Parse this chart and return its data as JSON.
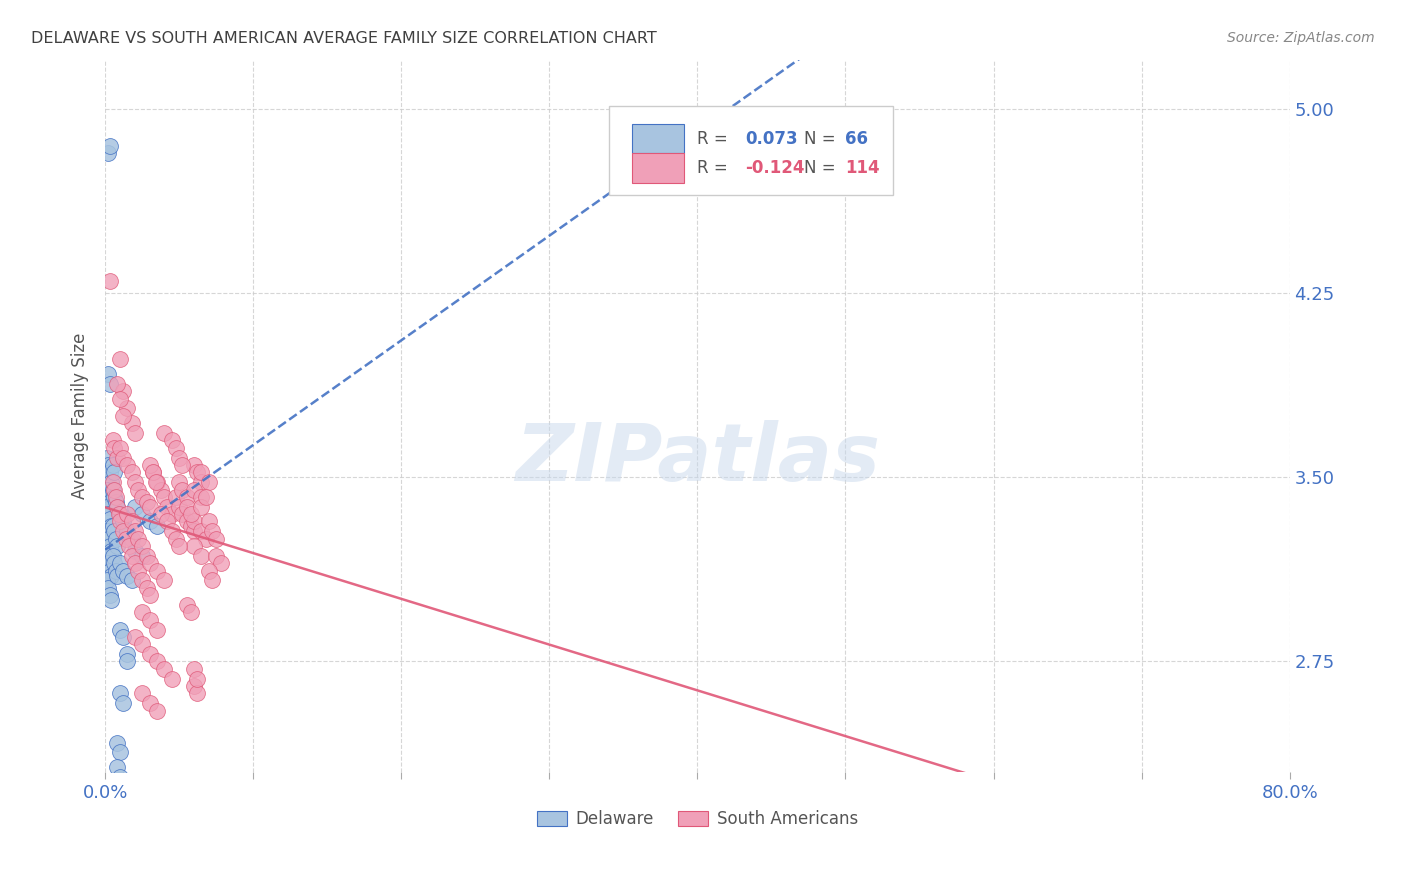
{
  "title": "DELAWARE VS SOUTH AMERICAN AVERAGE FAMILY SIZE CORRELATION CHART",
  "source": "Source: ZipAtlas.com",
  "ylabel": "Average Family Size",
  "yticks": [
    2.75,
    3.5,
    4.25,
    5.0
  ],
  "xlim": [
    0.0,
    0.8
  ],
  "ylim": [
    2.3,
    5.2
  ],
  "watermark": "ZIPatlas",
  "delaware_color": "#a8c4e0",
  "south_american_color": "#f0a0b8",
  "trendline_delaware_color": "#4472c4",
  "trendline_south_color": "#e05878",
  "background_color": "#ffffff",
  "grid_color": "#cccccc",
  "axis_color": "#4472c4",
  "title_color": "#404040",
  "delaware_R": 0.073,
  "delaware_N": 66,
  "south_R": -0.124,
  "south_N": 114,
  "delaware_points": [
    [
      0.002,
      4.82
    ],
    [
      0.003,
      4.85
    ],
    [
      0.002,
      3.92
    ],
    [
      0.003,
      3.88
    ],
    [
      0.001,
      3.58
    ],
    [
      0.002,
      3.55
    ],
    [
      0.003,
      3.52
    ],
    [
      0.004,
      3.48
    ],
    [
      0.001,
      3.45
    ],
    [
      0.002,
      3.42
    ],
    [
      0.003,
      3.4
    ],
    [
      0.004,
      3.38
    ],
    [
      0.001,
      3.38
    ],
    [
      0.002,
      3.35
    ],
    [
      0.003,
      3.33
    ],
    [
      0.004,
      3.3
    ],
    [
      0.001,
      3.28
    ],
    [
      0.002,
      3.25
    ],
    [
      0.003,
      3.22
    ],
    [
      0.004,
      3.2
    ],
    [
      0.001,
      3.18
    ],
    [
      0.002,
      3.15
    ],
    [
      0.003,
      3.12
    ],
    [
      0.004,
      3.1
    ],
    [
      0.001,
      3.08
    ],
    [
      0.002,
      3.05
    ],
    [
      0.003,
      3.02
    ],
    [
      0.004,
      3.0
    ],
    [
      0.005,
      3.45
    ],
    [
      0.006,
      3.42
    ],
    [
      0.007,
      3.4
    ],
    [
      0.008,
      3.38
    ],
    [
      0.005,
      3.3
    ],
    [
      0.006,
      3.28
    ],
    [
      0.007,
      3.25
    ],
    [
      0.008,
      3.22
    ],
    [
      0.005,
      3.18
    ],
    [
      0.006,
      3.15
    ],
    [
      0.007,
      3.12
    ],
    [
      0.008,
      3.1
    ],
    [
      0.01,
      3.35
    ],
    [
      0.012,
      3.32
    ],
    [
      0.015,
      3.28
    ],
    [
      0.018,
      3.25
    ],
    [
      0.01,
      3.15
    ],
    [
      0.012,
      3.12
    ],
    [
      0.015,
      3.1
    ],
    [
      0.018,
      3.08
    ],
    [
      0.01,
      2.88
    ],
    [
      0.012,
      2.85
    ],
    [
      0.015,
      2.78
    ],
    [
      0.015,
      2.75
    ],
    [
      0.02,
      3.2
    ],
    [
      0.025,
      3.18
    ],
    [
      0.01,
      2.62
    ],
    [
      0.012,
      2.58
    ],
    [
      0.008,
      2.42
    ],
    [
      0.01,
      2.38
    ],
    [
      0.008,
      2.32
    ],
    [
      0.01,
      2.28
    ],
    [
      0.02,
      3.38
    ],
    [
      0.025,
      3.35
    ],
    [
      0.03,
      3.32
    ],
    [
      0.035,
      3.3
    ],
    [
      0.005,
      3.55
    ],
    [
      0.006,
      3.52
    ]
  ],
  "south_american_points": [
    [
      0.003,
      4.3
    ],
    [
      0.01,
      3.98
    ],
    [
      0.012,
      3.85
    ],
    [
      0.015,
      3.78
    ],
    [
      0.018,
      3.72
    ],
    [
      0.02,
      3.68
    ],
    [
      0.008,
      3.88
    ],
    [
      0.01,
      3.82
    ],
    [
      0.012,
      3.75
    ],
    [
      0.005,
      3.65
    ],
    [
      0.006,
      3.62
    ],
    [
      0.008,
      3.58
    ],
    [
      0.01,
      3.62
    ],
    [
      0.012,
      3.58
    ],
    [
      0.015,
      3.55
    ],
    [
      0.018,
      3.52
    ],
    [
      0.02,
      3.48
    ],
    [
      0.022,
      3.45
    ],
    [
      0.025,
      3.42
    ],
    [
      0.028,
      3.4
    ],
    [
      0.03,
      3.38
    ],
    [
      0.032,
      3.52
    ],
    [
      0.035,
      3.48
    ],
    [
      0.038,
      3.45
    ],
    [
      0.04,
      3.42
    ],
    [
      0.042,
      3.38
    ],
    [
      0.045,
      3.35
    ],
    [
      0.048,
      3.42
    ],
    [
      0.05,
      3.38
    ],
    [
      0.052,
      3.35
    ],
    [
      0.055,
      3.32
    ],
    [
      0.058,
      3.3
    ],
    [
      0.06,
      3.28
    ],
    [
      0.005,
      3.48
    ],
    [
      0.006,
      3.45
    ],
    [
      0.007,
      3.42
    ],
    [
      0.008,
      3.38
    ],
    [
      0.009,
      3.35
    ],
    [
      0.01,
      3.32
    ],
    [
      0.012,
      3.28
    ],
    [
      0.014,
      3.25
    ],
    [
      0.016,
      3.22
    ],
    [
      0.018,
      3.18
    ],
    [
      0.02,
      3.15
    ],
    [
      0.022,
      3.12
    ],
    [
      0.025,
      3.08
    ],
    [
      0.028,
      3.05
    ],
    [
      0.03,
      3.02
    ],
    [
      0.015,
      3.35
    ],
    [
      0.018,
      3.32
    ],
    [
      0.02,
      3.28
    ],
    [
      0.022,
      3.25
    ],
    [
      0.025,
      3.22
    ],
    [
      0.028,
      3.18
    ],
    [
      0.03,
      3.15
    ],
    [
      0.035,
      3.12
    ],
    [
      0.04,
      3.08
    ],
    [
      0.025,
      2.95
    ],
    [
      0.03,
      2.92
    ],
    [
      0.035,
      2.88
    ],
    [
      0.02,
      2.85
    ],
    [
      0.025,
      2.82
    ],
    [
      0.03,
      2.78
    ],
    [
      0.035,
      2.75
    ],
    [
      0.04,
      2.72
    ],
    [
      0.045,
      2.68
    ],
    [
      0.025,
      2.62
    ],
    [
      0.03,
      2.58
    ],
    [
      0.035,
      2.55
    ],
    [
      0.04,
      3.68
    ],
    [
      0.045,
      3.65
    ],
    [
      0.048,
      3.62
    ],
    [
      0.05,
      3.48
    ],
    [
      0.052,
      3.45
    ],
    [
      0.055,
      3.42
    ],
    [
      0.038,
      3.35
    ],
    [
      0.042,
      3.32
    ],
    [
      0.045,
      3.28
    ],
    [
      0.03,
      3.55
    ],
    [
      0.032,
      3.52
    ],
    [
      0.034,
      3.48
    ],
    [
      0.06,
      3.55
    ],
    [
      0.062,
      3.52
    ],
    [
      0.065,
      3.48
    ],
    [
      0.06,
      3.32
    ],
    [
      0.065,
      3.28
    ],
    [
      0.068,
      3.25
    ],
    [
      0.07,
      3.32
    ],
    [
      0.072,
      3.28
    ],
    [
      0.075,
      3.25
    ],
    [
      0.06,
      2.65
    ],
    [
      0.062,
      2.62
    ],
    [
      0.06,
      3.45
    ],
    [
      0.065,
      3.42
    ],
    [
      0.06,
      3.22
    ],
    [
      0.065,
      3.18
    ],
    [
      0.06,
      2.72
    ],
    [
      0.065,
      3.52
    ],
    [
      0.07,
      3.48
    ],
    [
      0.075,
      3.18
    ],
    [
      0.078,
      3.15
    ],
    [
      0.048,
      3.25
    ],
    [
      0.05,
      3.22
    ],
    [
      0.055,
      2.98
    ],
    [
      0.058,
      2.95
    ],
    [
      0.07,
      3.12
    ],
    [
      0.072,
      3.08
    ],
    [
      0.055,
      3.38
    ],
    [
      0.058,
      3.35
    ],
    [
      0.05,
      3.58
    ],
    [
      0.052,
      3.55
    ],
    [
      0.062,
      2.68
    ],
    [
      0.065,
      3.38
    ],
    [
      0.068,
      3.42
    ]
  ]
}
